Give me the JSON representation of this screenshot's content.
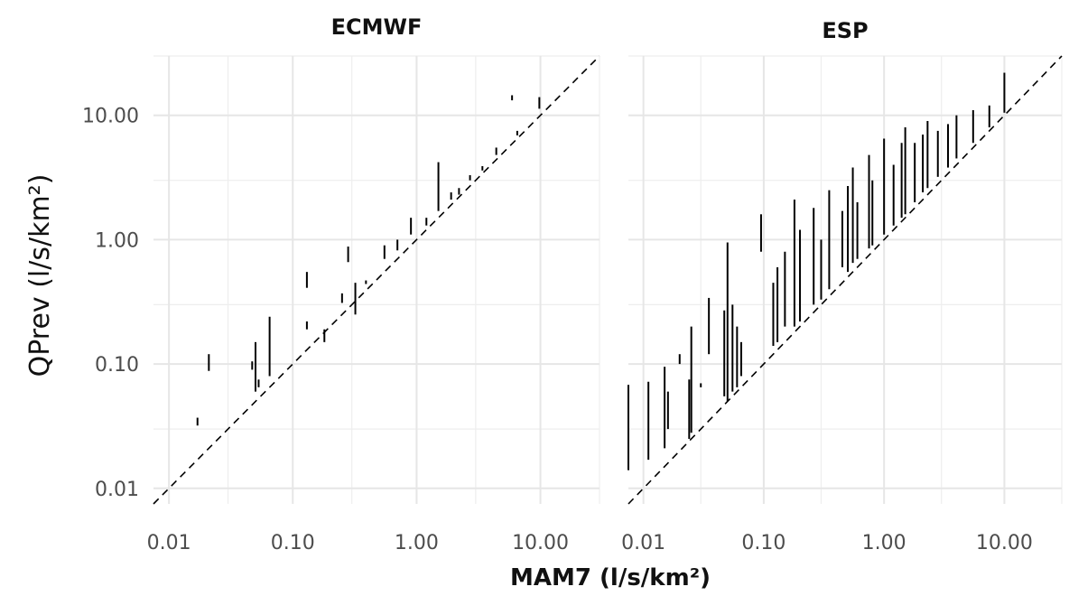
{
  "chart_data": {
    "type": "scatter",
    "xlabel": "MAM7 (l/s/km²)",
    "ylabel": "QPrev (l/s/km²)",
    "scale": "log10",
    "xlim": [
      0.0075,
      30
    ],
    "ylim": [
      0.0075,
      30
    ],
    "x_ticks": [
      "0.01",
      "0.10",
      "1.00",
      "10.00"
    ],
    "y_ticks": [
      "0.01",
      "0.10",
      "1.00",
      "10.00"
    ],
    "reference_line": "y = x (dashed)",
    "grid": true,
    "panels": [
      {
        "title": "ECMWF",
        "ranges": [
          [
            0.017,
            0.032,
            0.037
          ],
          [
            0.021,
            0.088,
            0.12
          ],
          [
            0.047,
            0.09,
            0.105
          ],
          [
            0.05,
            0.06,
            0.15
          ],
          [
            0.053,
            0.065,
            0.075
          ],
          [
            0.065,
            0.08,
            0.24
          ],
          [
            0.13,
            0.41,
            0.55
          ],
          [
            0.13,
            0.19,
            0.22
          ],
          [
            0.18,
            0.15,
            0.19
          ],
          [
            0.25,
            0.31,
            0.37
          ],
          [
            0.28,
            0.66,
            0.88
          ],
          [
            0.32,
            0.25,
            0.45
          ],
          [
            0.39,
            0.44,
            0.47
          ],
          [
            0.55,
            0.7,
            0.9
          ],
          [
            0.7,
            0.82,
            1.0
          ],
          [
            0.9,
            1.1,
            1.5
          ],
          [
            1.2,
            1.3,
            1.5
          ],
          [
            1.5,
            1.7,
            4.2
          ],
          [
            1.9,
            2.1,
            2.4
          ],
          [
            2.2,
            2.3,
            2.6
          ],
          [
            2.7,
            3.0,
            3.3
          ],
          [
            3.4,
            3.6,
            3.9
          ],
          [
            4.4,
            4.8,
            5.5
          ],
          [
            5.9,
            13.2,
            14.5
          ],
          [
            6.5,
            6.9,
            7.5
          ],
          [
            9.8,
            11.3,
            14.0
          ]
        ]
      },
      {
        "title": "ESP",
        "ranges": [
          [
            0.0075,
            0.014,
            0.068
          ],
          [
            0.011,
            0.017,
            0.072
          ],
          [
            0.015,
            0.021,
            0.095
          ],
          [
            0.016,
            0.03,
            0.06
          ],
          [
            0.02,
            0.1,
            0.12
          ],
          [
            0.024,
            0.025,
            0.075
          ],
          [
            0.025,
            0.028,
            0.2
          ],
          [
            0.03,
            0.065,
            0.07
          ],
          [
            0.035,
            0.12,
            0.34
          ],
          [
            0.047,
            0.055,
            0.27
          ],
          [
            0.05,
            0.05,
            0.95
          ],
          [
            0.055,
            0.06,
            0.3
          ],
          [
            0.06,
            0.065,
            0.2
          ],
          [
            0.065,
            0.08,
            0.15
          ],
          [
            0.095,
            0.8,
            1.6
          ],
          [
            0.12,
            0.14,
            0.45
          ],
          [
            0.13,
            0.15,
            0.6
          ],
          [
            0.15,
            0.2,
            0.8
          ],
          [
            0.18,
            0.2,
            2.1
          ],
          [
            0.2,
            0.22,
            1.2
          ],
          [
            0.26,
            0.3,
            1.8
          ],
          [
            0.3,
            0.33,
            1.0
          ],
          [
            0.35,
            0.4,
            2.5
          ],
          [
            0.45,
            0.6,
            1.7
          ],
          [
            0.5,
            0.55,
            2.7
          ],
          [
            0.55,
            0.65,
            3.8
          ],
          [
            0.6,
            0.7,
            2.0
          ],
          [
            0.75,
            0.85,
            4.8
          ],
          [
            0.8,
            0.9,
            3.0
          ],
          [
            1.0,
            1.1,
            6.5
          ],
          [
            1.2,
            1.3,
            4.0
          ],
          [
            1.4,
            1.5,
            6.0
          ],
          [
            1.5,
            1.6,
            8.0
          ],
          [
            1.8,
            2.0,
            6.0
          ],
          [
            2.1,
            2.4,
            7.0
          ],
          [
            2.3,
            2.6,
            9.0
          ],
          [
            2.8,
            3.2,
            7.5
          ],
          [
            3.4,
            3.8,
            8.5
          ],
          [
            4.0,
            4.5,
            10.0
          ],
          [
            5.5,
            6.0,
            11.0
          ],
          [
            7.5,
            8.0,
            12.0
          ],
          [
            10.0,
            10.5,
            22.0
          ]
        ]
      }
    ]
  }
}
